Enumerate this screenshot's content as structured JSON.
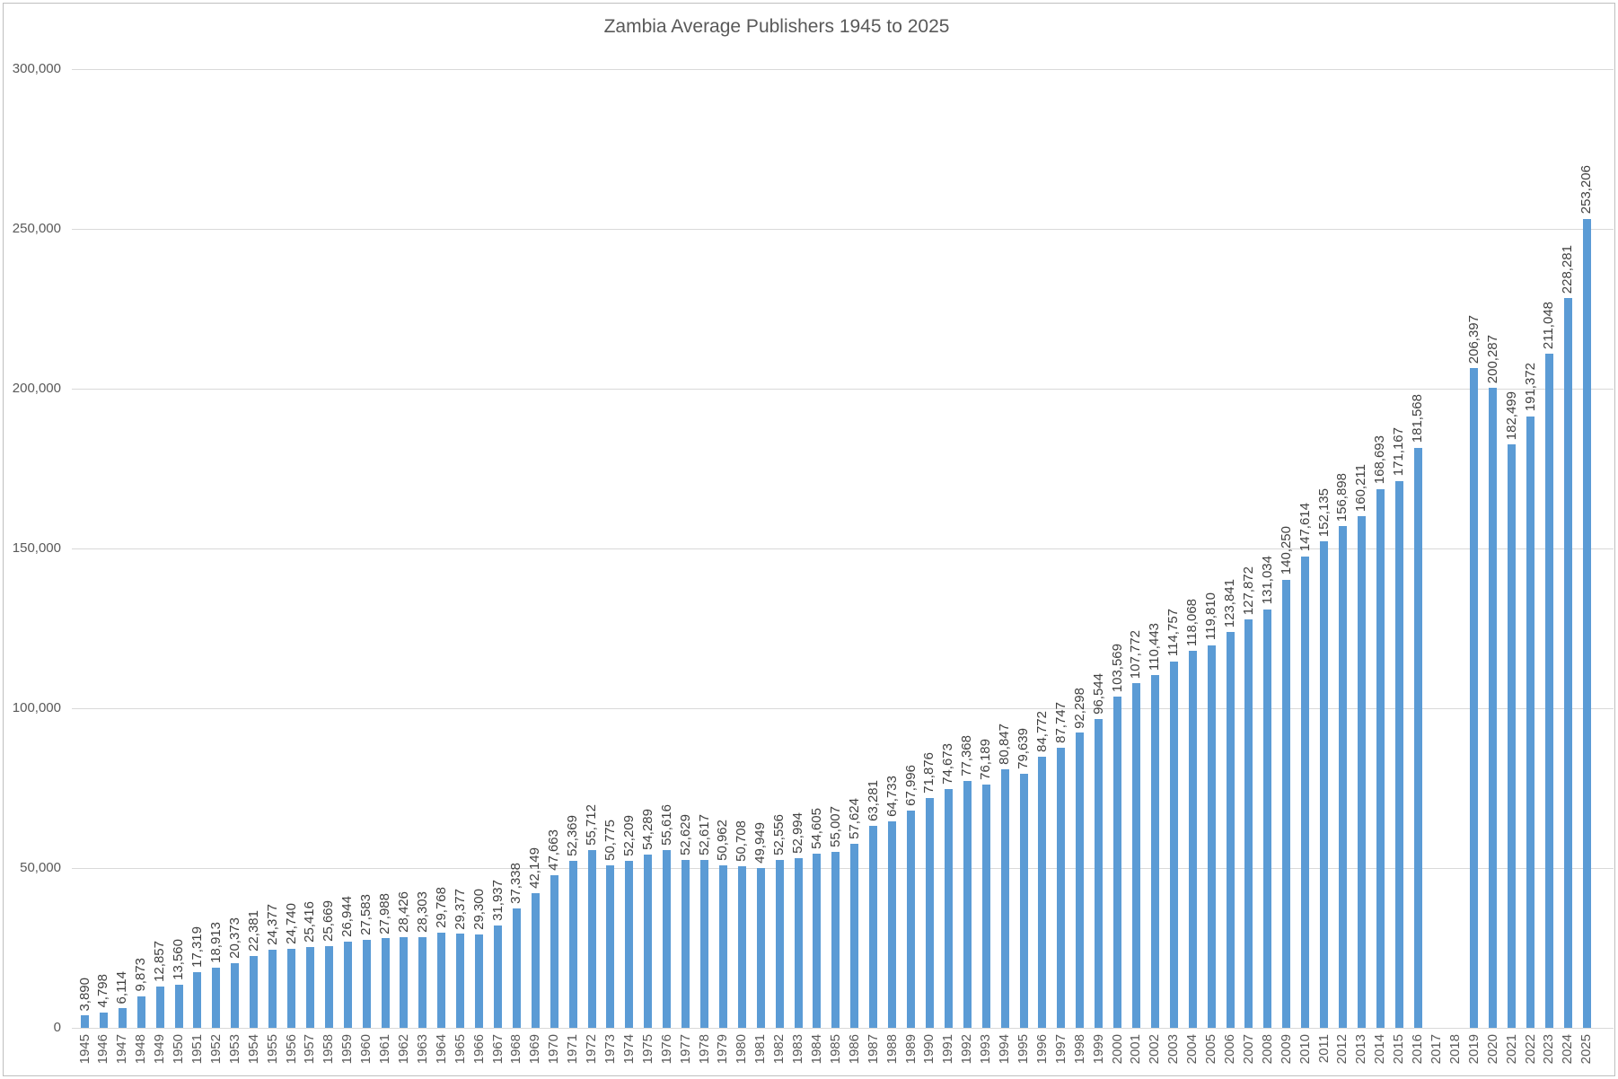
{
  "chart_data": {
    "type": "bar",
    "title": "Zambia Average Publishers 1945 to 2025",
    "categories": [
      1945,
      1946,
      1947,
      1948,
      1949,
      1950,
      1951,
      1952,
      1953,
      1954,
      1955,
      1956,
      1957,
      1958,
      1959,
      1960,
      1961,
      1962,
      1963,
      1964,
      1965,
      1966,
      1967,
      1968,
      1969,
      1970,
      1971,
      1972,
      1973,
      1974,
      1975,
      1976,
      1977,
      1978,
      1979,
      1980,
      1981,
      1982,
      1983,
      1984,
      1985,
      1986,
      1987,
      1988,
      1989,
      1990,
      1991,
      1992,
      1993,
      1994,
      1995,
      1996,
      1997,
      1998,
      1999,
      2000,
      2001,
      2002,
      2003,
      2004,
      2005,
      2006,
      2007,
      2008,
      2009,
      2010,
      2011,
      2012,
      2013,
      2014,
      2015,
      2016,
      2017,
      2018,
      2019,
      2020,
      2021,
      2022,
      2023,
      2024,
      2025
    ],
    "values": [
      3890,
      4798,
      6114,
      9873,
      12857,
      13560,
      17319,
      18913,
      20373,
      22381,
      24377,
      24740,
      25416,
      25669,
      26944,
      27583,
      27988,
      28426,
      28303,
      29768,
      29377,
      29300,
      31937,
      37338,
      42149,
      47663,
      52369,
      55712,
      50775,
      52209,
      54289,
      55616,
      52629,
      52617,
      50962,
      50708,
      49949,
      52556,
      52994,
      54605,
      55007,
      57624,
      63281,
      64733,
      67996,
      71876,
      74673,
      77368,
      76189,
      80847,
      79639,
      84772,
      87747,
      92298,
      96544,
      103569,
      107772,
      110443,
      114757,
      118068,
      119810,
      123841,
      127872,
      131034,
      140250,
      147614,
      152135,
      156898,
      160211,
      168693,
      171167,
      181568,
      null,
      null,
      206397,
      200287,
      182499,
      191372,
      211048,
      228281,
      253206
    ],
    "xlabel": "",
    "ylabel": "",
    "ylim": [
      0,
      300000
    ],
    "ytick_values": [
      0,
      50000,
      100000,
      150000,
      200000,
      250000,
      300000
    ],
    "grid": true,
    "legend_position": "none",
    "data_labels_rotation": -90,
    "x_labels_rotation": -90,
    "bar_color": "#5b9bd5",
    "gridline_color": "#d9d9d9",
    "axis_text_color": "#595959",
    "data_label_color": "#404040",
    "missing_years": [
      2017,
      2018
    ]
  }
}
